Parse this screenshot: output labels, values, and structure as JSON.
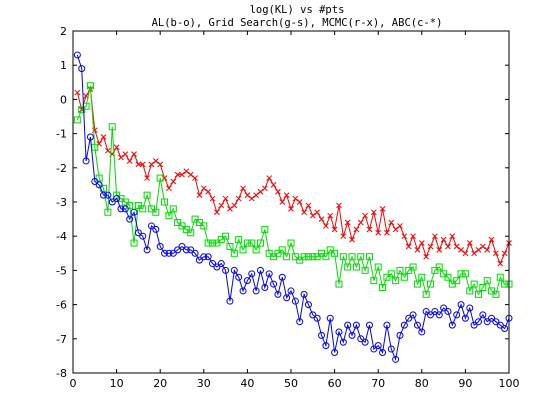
{
  "chart_data": {
    "type": "line",
    "title": "log(KL) vs #pts",
    "subtitle": "AL(b-o), Grid Search(g-s), MCMC(r-x), ABC(c-*)",
    "xlabel": "",
    "ylabel": "",
    "xlim": [
      0,
      100
    ],
    "ylim": [
      -8,
      2
    ],
    "xticks": [
      0,
      10,
      20,
      30,
      40,
      50,
      60,
      70,
      80,
      90,
      100
    ],
    "yticks": [
      -8,
      -7,
      -6,
      -5,
      -4,
      -3,
      -2,
      -1,
      0,
      1,
      2
    ],
    "grid": false,
    "legend": "none",
    "series": [
      {
        "color": "#ff0000",
        "marker": "x",
        "x": [
          1,
          2,
          3,
          4,
          5,
          6,
          7,
          8,
          9,
          10,
          11,
          12,
          13,
          14,
          15,
          16,
          17,
          18,
          19,
          20,
          21,
          22,
          23,
          24,
          25,
          26,
          27,
          28,
          29,
          30,
          31,
          32,
          33,
          34,
          35,
          36,
          37,
          38,
          39,
          40,
          41,
          42,
          43,
          44,
          45,
          46,
          47,
          48,
          49,
          50,
          51,
          52,
          53,
          54,
          55,
          56,
          57,
          58,
          59,
          60,
          61,
          62,
          63,
          64,
          65,
          66,
          67,
          68,
          69,
          70,
          71,
          72,
          73,
          74,
          75,
          76,
          77,
          78,
          79,
          80,
          81,
          82,
          83,
          84,
          85,
          86,
          87,
          88,
          89,
          90,
          91,
          92,
          93,
          94,
          95,
          96,
          97,
          98,
          99,
          100
        ],
        "y": [
          0.2,
          -0.3,
          0.1,
          0.3,
          -0.9,
          -1.3,
          -1.1,
          -1.5,
          -1.6,
          -1.4,
          -1.7,
          -1.6,
          -1.8,
          -1.6,
          -1.9,
          -1.9,
          -2.3,
          -1.9,
          -1.8,
          -1.9,
          -2.3,
          -2.6,
          -2.4,
          -2.2,
          -2.2,
          -2.1,
          -2.2,
          -2.3,
          -2.8,
          -2.6,
          -2.7,
          -2.9,
          -3.3,
          -3.1,
          -2.9,
          -3.2,
          -3.1,
          -2.9,
          -2.6,
          -2.8,
          -2.9,
          -2.8,
          -2.7,
          -2.6,
          -2.3,
          -2.5,
          -2.7,
          -3.0,
          -2.8,
          -3.2,
          -2.9,
          -3.0,
          -3.3,
          -3.1,
          -3.4,
          -3.3,
          -3.5,
          -3.7,
          -3.4,
          -3.8,
          -3.1,
          -4.0,
          -3.6,
          -4.1,
          -3.8,
          -3.6,
          -3.4,
          -3.8,
          -3.3,
          -3.9,
          -3.2,
          -3.9,
          -3.6,
          -3.8,
          -3.7,
          -4.0,
          -4.3,
          -4.0,
          -4.4,
          -4.2,
          -4.6,
          -4.3,
          -4.0,
          -4.4,
          -4.1,
          -4.3,
          -4.0,
          -4.3,
          -4.4,
          -4.5,
          -4.2,
          -4.5,
          -4.4,
          -4.3,
          -4.4,
          -4.1,
          -4.5,
          -4.8,
          -4.5,
          -4.2
        ]
      },
      {
        "color": "#00dd00",
        "marker": "s",
        "x": [
          1,
          2,
          3,
          4,
          5,
          6,
          7,
          8,
          9,
          10,
          11,
          12,
          13,
          14,
          15,
          16,
          17,
          18,
          19,
          20,
          21,
          22,
          23,
          24,
          25,
          26,
          27,
          28,
          29,
          30,
          31,
          32,
          33,
          34,
          35,
          36,
          37,
          38,
          39,
          40,
          41,
          42,
          43,
          44,
          45,
          46,
          47,
          48,
          49,
          50,
          51,
          52,
          53,
          54,
          55,
          56,
          57,
          58,
          59,
          60,
          61,
          62,
          63,
          64,
          65,
          66,
          67,
          68,
          69,
          70,
          71,
          72,
          73,
          74,
          75,
          76,
          77,
          78,
          79,
          80,
          81,
          82,
          83,
          84,
          85,
          86,
          87,
          88,
          89,
          90,
          91,
          92,
          93,
          94,
          95,
          96,
          97,
          98,
          99,
          100
        ],
        "y": [
          -0.6,
          -0.3,
          -0.2,
          0.4,
          -1.4,
          -2.3,
          -2.6,
          -3.3,
          -0.8,
          -2.8,
          -2.9,
          -3.0,
          -3.1,
          -4.2,
          -3.1,
          -3.2,
          -2.8,
          -3.2,
          -3.3,
          -2.3,
          -3.0,
          -3.4,
          -3.2,
          -3.6,
          -3.7,
          -3.8,
          -3.9,
          -3.5,
          -3.6,
          -3.7,
          -4.2,
          -4.2,
          -4.2,
          -4.1,
          -4.0,
          -4.3,
          -4.5,
          -4.1,
          -4.4,
          -4.2,
          -4.2,
          -4.4,
          -4.2,
          -3.8,
          -4.5,
          -4.6,
          -4.5,
          -4.4,
          -4.6,
          -4.2,
          -4.6,
          -4.7,
          -4.6,
          -4.6,
          -4.6,
          -4.6,
          -4.5,
          -4.6,
          -4.4,
          -4.5,
          -5.4,
          -4.6,
          -4.9,
          -4.6,
          -4.9,
          -4.6,
          -5.0,
          -4.6,
          -5.3,
          -4.9,
          -5.5,
          -5.2,
          -5.1,
          -5.3,
          -5.0,
          -5.2,
          -5.0,
          -4.9,
          -5.4,
          -5.2,
          -5.7,
          -5.4,
          -5.0,
          -4.9,
          -5.1,
          -5.2,
          -5.4,
          -5.3,
          -5.1,
          -5.1,
          -5.6,
          -5.4,
          -5.7,
          -5.5,
          -5.3,
          -5.6,
          -5.7,
          -5.2,
          -5.4,
          -5.4
        ]
      },
      {
        "color": "#0000ff",
        "marker": "o",
        "x": [
          1,
          2,
          3,
          4,
          5,
          6,
          7,
          8,
          9,
          10,
          11,
          12,
          13,
          14,
          15,
          16,
          17,
          18,
          19,
          20,
          21,
          22,
          23,
          24,
          25,
          26,
          27,
          28,
          29,
          30,
          31,
          32,
          33,
          34,
          35,
          36,
          37,
          38,
          39,
          40,
          41,
          42,
          43,
          44,
          45,
          46,
          47,
          48,
          49,
          50,
          51,
          52,
          53,
          54,
          55,
          56,
          57,
          58,
          59,
          60,
          61,
          62,
          63,
          64,
          65,
          66,
          67,
          68,
          69,
          70,
          71,
          72,
          73,
          74,
          75,
          76,
          77,
          78,
          79,
          80,
          81,
          82,
          83,
          84,
          85,
          86,
          87,
          88,
          89,
          90,
          91,
          92,
          93,
          94,
          95,
          96,
          97,
          98,
          99,
          100
        ],
        "y": [
          1.3,
          0.9,
          -1.8,
          -1.1,
          -2.4,
          -2.5,
          -2.8,
          -2.8,
          -3.0,
          -2.9,
          -3.2,
          -3.2,
          -3.5,
          -3.3,
          -3.9,
          -4.0,
          -4.4,
          -3.7,
          -3.8,
          -4.3,
          -4.5,
          -4.5,
          -4.5,
          -4.4,
          -4.3,
          -4.4,
          -4.4,
          -4.5,
          -4.7,
          -4.6,
          -4.6,
          -4.8,
          -4.9,
          -4.8,
          -5.0,
          -5.9,
          -5.0,
          -5.2,
          -5.6,
          -5.3,
          -5.1,
          -5.6,
          -5.0,
          -5.5,
          -5.1,
          -5.4,
          -5.7,
          -5.2,
          -5.8,
          -5.6,
          -5.9,
          -6.5,
          -5.7,
          -6.0,
          -6.3,
          -6.4,
          -6.9,
          -7.2,
          -6.4,
          -7.4,
          -6.8,
          -7.1,
          -6.6,
          -6.9,
          -6.6,
          -7.0,
          -7.1,
          -6.6,
          -7.3,
          -7.2,
          -7.4,
          -6.6,
          -7.3,
          -7.6,
          -6.9,
          -6.6,
          -6.4,
          -6.3,
          -6.6,
          -6.8,
          -6.2,
          -6.3,
          -6.2,
          -6.3,
          -6.1,
          -6.2,
          -6.6,
          -6.3,
          -6.0,
          -6.4,
          -6.1,
          -6.6,
          -6.5,
          -6.3,
          -6.5,
          -6.4,
          -6.5,
          -6.6,
          -6.7,
          -6.4
        ]
      }
    ]
  }
}
